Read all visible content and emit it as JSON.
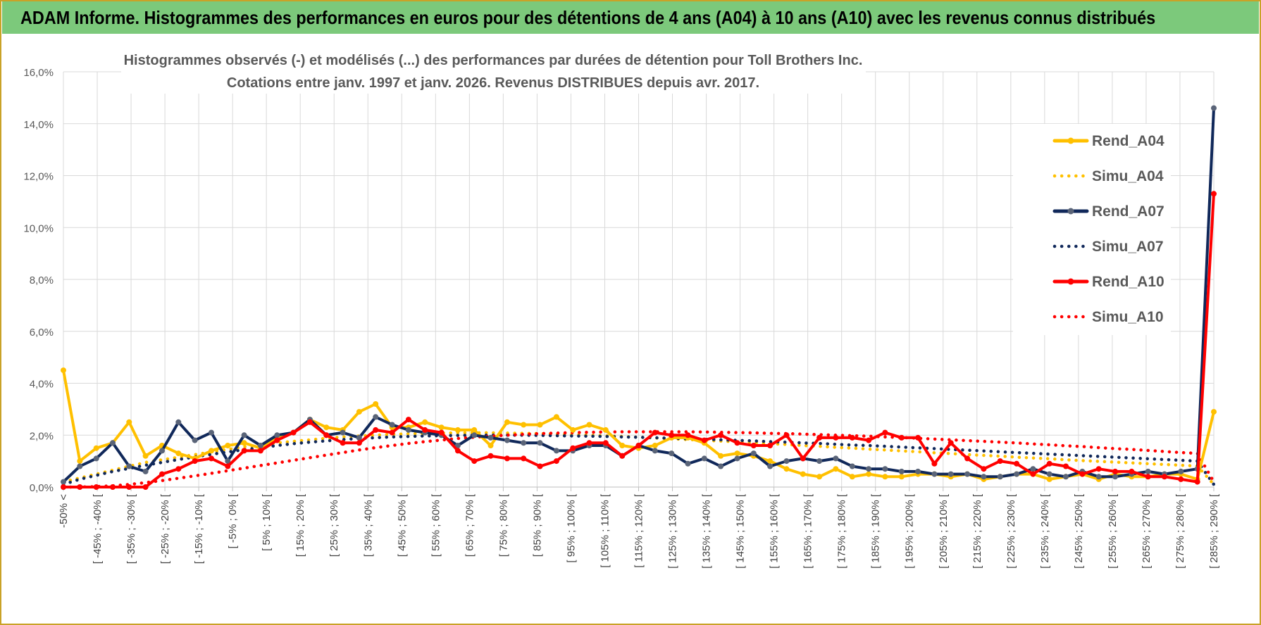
{
  "header": {
    "title": "ADAM Informe. Histogrammes des performances en euros pour des détentions de 4 ans (A04) à 10 ans (A10) avec les revenus connus distribués"
  },
  "chart_data": {
    "type": "line",
    "title": "Histogrammes observés (-) et modélisés (...) des performances par durées de détention pour Toll Brothers Inc.",
    "subtitle": "Cotations entre janv. 1997 et janv. 2026. Revenus DISTRIBUES depuis avr. 2017.",
    "ylim": [
      0,
      16
    ],
    "yticks": [
      "0,0%",
      "2,0%",
      "4,0%",
      "6,0%",
      "8,0%",
      "10,0%",
      "12,0%",
      "14,0%",
      "16,0%"
    ],
    "xticks": [
      "-50% <",
      "[ -45% ; -40% [",
      "[ -35% ; -30% [",
      "[ -25% ; -20% [",
      "[ -15% ; -10% [",
      "[ -5% ; 0% [",
      "[ 5% ; 10% [",
      "[ 15% ; 20% [",
      "[ 25% ; 30% [",
      "[ 35% ; 40% [",
      "[ 45% ; 50% [",
      "[ 55% ; 60% [",
      "[ 65% ; 70% [",
      "[ 75% ; 80% [",
      "[ 85% ; 90% [",
      "[ 95% ; 100% [",
      "[ 105% ; 110% [",
      "[ 115% ; 120% [",
      "[ 125% ; 130% [",
      "[ 135% ; 140% [",
      "[ 145% ; 150% [",
      "[ 155% ; 160% [",
      "[ 165% ; 170% [",
      "[ 175% ; 180% [",
      "[ 185% ; 190% [",
      "[ 195% ; 200% [",
      "[ 205% ; 210% [",
      "[ 215% ; 220% [",
      "[ 225% ; 230% [",
      "[ 235% ; 240% [",
      "[ 245% ; 250% [",
      "[ 255% ; 260% [",
      "[ 265% ; 270% [",
      "[ 275% ; 280% [",
      "[ 285% ; 290% ["
    ],
    "legend_position": "right",
    "series": [
      {
        "name": "Rend_A04",
        "style": "solid",
        "color": "#ffc000",
        "values": [
          4.5,
          1.0,
          1.5,
          1.7,
          2.5,
          1.2,
          1.6,
          1.3,
          1.1,
          1.4,
          1.6,
          1.7,
          1.5,
          1.9,
          2.1,
          2.6,
          2.3,
          2.2,
          2.9,
          3.2,
          2.3,
          2.3,
          2.5,
          2.3,
          2.2,
          2.2,
          1.6,
          2.5,
          2.4,
          2.4,
          2.7,
          2.2,
          2.4,
          2.2,
          1.6,
          1.5,
          1.6,
          1.9,
          1.9,
          1.7,
          1.2,
          1.3,
          1.2,
          1.0,
          0.7,
          0.5,
          0.4,
          0.7,
          0.4,
          0.5,
          0.4,
          0.4,
          0.5,
          0.5,
          0.4,
          0.5,
          0.3,
          0.4,
          0.5,
          0.5,
          0.3,
          0.4,
          0.5,
          0.3,
          0.5,
          0.4,
          0.4,
          0.5,
          0.5,
          0.3,
          2.9
        ]
      },
      {
        "name": "Simu_A04",
        "style": "dotted",
        "color": "#ffc000",
        "values": [
          0.2,
          0.35,
          0.5,
          0.65,
          0.8,
          0.95,
          1.05,
          1.15,
          1.25,
          1.35,
          1.45,
          1.55,
          1.62,
          1.7,
          1.76,
          1.82,
          1.88,
          1.93,
          1.97,
          2.0,
          2.03,
          2.05,
          2.07,
          2.08,
          2.09,
          2.09,
          2.09,
          2.08,
          2.07,
          2.06,
          2.04,
          2.02,
          2.0,
          1.98,
          1.95,
          1.92,
          1.89,
          1.86,
          1.83,
          1.8,
          1.77,
          1.74,
          1.71,
          1.67,
          1.64,
          1.6,
          1.57,
          1.53,
          1.5,
          1.46,
          1.43,
          1.39,
          1.36,
          1.32,
          1.29,
          1.25,
          1.22,
          1.19,
          1.15,
          1.12,
          1.09,
          1.05,
          1.02,
          0.99,
          0.96,
          0.93,
          0.9,
          0.87,
          0.84,
          0.81,
          0.1
        ]
      },
      {
        "name": "Rend_A07",
        "style": "solid",
        "color": "#10285a",
        "values": [
          0.2,
          0.8,
          1.1,
          1.7,
          0.8,
          0.6,
          1.4,
          2.5,
          1.8,
          2.1,
          1.0,
          2.0,
          1.6,
          2.0,
          2.1,
          2.6,
          2.0,
          2.1,
          1.9,
          2.7,
          2.4,
          2.2,
          2.1,
          2.0,
          1.6,
          2.0,
          1.9,
          1.8,
          1.7,
          1.7,
          1.4,
          1.4,
          1.6,
          1.6,
          1.2,
          1.6,
          1.4,
          1.3,
          0.9,
          1.1,
          0.8,
          1.1,
          1.3,
          0.8,
          1.0,
          1.1,
          1.0,
          1.1,
          0.8,
          0.7,
          0.7,
          0.6,
          0.6,
          0.5,
          0.5,
          0.5,
          0.4,
          0.4,
          0.5,
          0.7,
          0.5,
          0.4,
          0.6,
          0.4,
          0.4,
          0.5,
          0.6,
          0.5,
          0.6,
          0.7,
          14.6
        ]
      },
      {
        "name": "Simu_A07",
        "style": "dotted",
        "color": "#10285a",
        "values": [
          0.1,
          0.3,
          0.45,
          0.6,
          0.72,
          0.84,
          0.95,
          1.06,
          1.16,
          1.26,
          1.35,
          1.44,
          1.52,
          1.6,
          1.67,
          1.73,
          1.78,
          1.83,
          1.87,
          1.9,
          1.93,
          1.95,
          1.97,
          1.98,
          1.99,
          2.0,
          2.0,
          2.0,
          2.0,
          1.99,
          1.98,
          1.97,
          1.96,
          1.95,
          1.93,
          1.92,
          1.9,
          1.88,
          1.86,
          1.84,
          1.82,
          1.8,
          1.78,
          1.75,
          1.73,
          1.7,
          1.68,
          1.65,
          1.62,
          1.6,
          1.57,
          1.54,
          1.51,
          1.48,
          1.45,
          1.42,
          1.39,
          1.36,
          1.33,
          1.3,
          1.27,
          1.24,
          1.21,
          1.18,
          1.15,
          1.12,
          1.09,
          1.06,
          1.03,
          1.0,
          0.1
        ]
      },
      {
        "name": "Rend_A10",
        "style": "solid",
        "color": "#ff0000",
        "values": [
          0.0,
          0.0,
          0.0,
          0.0,
          0.0,
          0.0,
          0.5,
          0.7,
          1.0,
          1.1,
          0.8,
          1.4,
          1.4,
          1.8,
          2.1,
          2.5,
          2.0,
          1.7,
          1.7,
          2.2,
          2.1,
          2.6,
          2.2,
          2.1,
          1.4,
          1.0,
          1.2,
          1.1,
          1.1,
          0.8,
          1.0,
          1.5,
          1.7,
          1.7,
          1.2,
          1.6,
          2.1,
          2.0,
          2.0,
          1.8,
          2.0,
          1.7,
          1.6,
          1.6,
          2.0,
          1.1,
          1.9,
          1.9,
          1.9,
          1.8,
          2.1,
          1.9,
          1.9,
          0.9,
          1.7,
          1.1,
          0.7,
          1.0,
          0.9,
          0.5,
          0.9,
          0.8,
          0.5,
          0.7,
          0.6,
          0.6,
          0.4,
          0.4,
          0.3,
          0.2,
          11.3
        ]
      },
      {
        "name": "Simu_A10",
        "style": "dotted",
        "color": "#ff0000",
        "values": [
          0.0,
          0.0,
          0.02,
          0.05,
          0.1,
          0.17,
          0.25,
          0.34,
          0.43,
          0.53,
          0.63,
          0.73,
          0.83,
          0.93,
          1.03,
          1.13,
          1.23,
          1.33,
          1.43,
          1.52,
          1.6,
          1.68,
          1.75,
          1.81,
          1.87,
          1.92,
          1.96,
          2.0,
          2.03,
          2.06,
          2.08,
          2.1,
          2.11,
          2.12,
          2.13,
          2.13,
          2.13,
          2.13,
          2.13,
          2.12,
          2.11,
          2.1,
          2.09,
          2.07,
          2.06,
          2.04,
          2.02,
          2.0,
          1.98,
          1.96,
          1.93,
          1.91,
          1.88,
          1.85,
          1.82,
          1.79,
          1.76,
          1.73,
          1.7,
          1.66,
          1.63,
          1.59,
          1.56,
          1.52,
          1.48,
          1.45,
          1.41,
          1.37,
          1.33,
          1.3,
          0.2
        ]
      }
    ]
  }
}
